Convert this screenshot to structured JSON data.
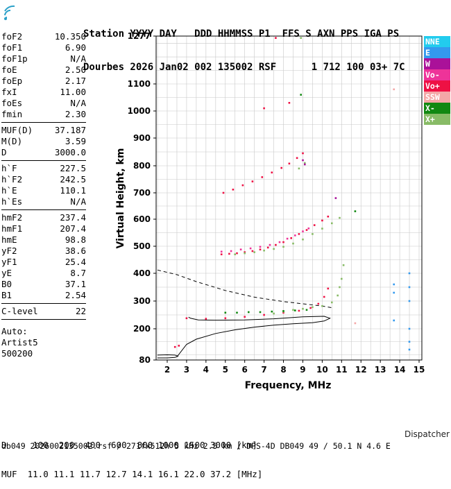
{
  "header": {
    "line1": "Station YYYY DAY   DDD HHMMSS P1  FFS S AXN PPS IGA PS",
    "line2": "Dourbes 2026 Jan02 002 135002 RSF      1 712 100 03+ 7C"
  },
  "params": [
    {
      "label": "foF2",
      "value": "10.350"
    },
    {
      "label": "foF1",
      "value": "6.90"
    },
    {
      "label": "foF1p",
      "value": "N/A"
    },
    {
      "label": "foE",
      "value": "2.50"
    },
    {
      "label": "foEp",
      "value": "2.17"
    },
    {
      "label": "fxI",
      "value": "11.00"
    },
    {
      "label": "foEs",
      "value": "N/A"
    },
    {
      "label": "fmin",
      "value": "2.30"
    },
    {
      "sep": true
    },
    {
      "label": "MUF(D)",
      "value": "37.187"
    },
    {
      "label": "M(D)",
      "value": "3.59"
    },
    {
      "label": "D",
      "value": "3000.0"
    },
    {
      "sep": true
    },
    {
      "label": "h`F",
      "value": "227.5"
    },
    {
      "label": "h`F2",
      "value": "242.5"
    },
    {
      "label": "h`E",
      "value": "110.1"
    },
    {
      "label": "h`Es",
      "value": "N/A"
    },
    {
      "sep": true
    },
    {
      "label": "hmF2",
      "value": "237.4"
    },
    {
      "label": "hmF1",
      "value": "207.4"
    },
    {
      "label": "hmE",
      "value": "98.8"
    },
    {
      "label": "yF2",
      "value": "38.6"
    },
    {
      "label": "yF1",
      "value": "25.4"
    },
    {
      "label": "yE",
      "value": "8.7"
    },
    {
      "label": "B0",
      "value": "37.1"
    },
    {
      "label": "B1",
      "value": "2.54"
    },
    {
      "sep": true
    },
    {
      "label": "C-level",
      "value": "22"
    },
    {
      "sep": true
    }
  ],
  "auto": {
    "line1": "Auto:",
    "line2": "Artist5",
    "line3": "500200"
  },
  "legend": [
    {
      "label": "NNE",
      "color": "#22ccee"
    },
    {
      "label": "E",
      "color": "#3399ee"
    },
    {
      "label": "W",
      "color": "#aa1199"
    },
    {
      "label": "Vo-",
      "color": "#ee3399"
    },
    {
      "label": "Vo+",
      "color": "#ee1144"
    },
    {
      "label": "SSW",
      "color": "#f4a7a7"
    },
    {
      "label": "X-",
      "color": "#118811"
    },
    {
      "label": "X+",
      "color": "#88bb66"
    }
  ],
  "muf_table": {
    "row1": "D     100  200  400  600  800 1000 1500 3000 [km]",
    "row2": "MUF  11.0 11.1 11.7 12.7 14.1 16.1 22.0 37.2 [MHz]"
  },
  "footer": "db049 2026002135002.rsf / 271fx512h 5 kHz 2.5 km / DPS-4D DB049 49 / 50.1 N 4.6 E",
  "dispatcher": "Dispatcher",
  "chart_data": {
    "type": "scatter",
    "xlabel": "Frequency, MHz",
    "ylabel": "Virtual Height, km",
    "xlim": [
      1.5,
      15.2
    ],
    "ylim": [
      80,
      1277
    ],
    "x_ticks": [
      2,
      3,
      4,
      5,
      6,
      7,
      8,
      9,
      10,
      11,
      12,
      13,
      14,
      15
    ],
    "y_ticks": [
      80,
      200,
      300,
      400,
      500,
      600,
      700,
      800,
      900,
      1000,
      1100,
      1277
    ],
    "grid": true,
    "series": [
      {
        "name": "Vo+",
        "color": "#ee1144",
        "points": [
          [
            4.8,
            470
          ],
          [
            5.2,
            472
          ],
          [
            5.6,
            474
          ],
          [
            6.0,
            478
          ],
          [
            6.4,
            482
          ],
          [
            6.8,
            488
          ],
          [
            7.2,
            495
          ],
          [
            7.6,
            505
          ],
          [
            8.0,
            515
          ],
          [
            8.4,
            530
          ],
          [
            8.8,
            545
          ],
          [
            9.2,
            560
          ],
          [
            9.6,
            578
          ],
          [
            10.0,
            595
          ],
          [
            10.3,
            610
          ],
          [
            4.9,
            700
          ],
          [
            5.4,
            712
          ],
          [
            5.9,
            728
          ],
          [
            6.4,
            742
          ],
          [
            6.9,
            758
          ],
          [
            7.4,
            775
          ],
          [
            7.9,
            792
          ],
          [
            8.3,
            808
          ],
          [
            8.7,
            828
          ],
          [
            9.0,
            845
          ],
          [
            3.0,
            238
          ],
          [
            4.0,
            236
          ],
          [
            5.0,
            238
          ],
          [
            6.0,
            243
          ],
          [
            7.0,
            250
          ],
          [
            8.0,
            258
          ],
          [
            8.8,
            265
          ],
          [
            9.4,
            275
          ],
          [
            9.8,
            290
          ],
          [
            10.1,
            315
          ],
          [
            10.3,
            345
          ],
          [
            2.4,
            130
          ],
          [
            2.6,
            135
          ],
          [
            7.6,
            1270
          ],
          [
            8.3,
            1030
          ],
          [
            7.0,
            1010
          ]
        ]
      },
      {
        "name": "Vo-",
        "color": "#ee3399",
        "points": [
          [
            4.8,
            480
          ],
          [
            5.3,
            482
          ],
          [
            5.8,
            488
          ],
          [
            6.3,
            492
          ],
          [
            6.8,
            498
          ],
          [
            7.3,
            505
          ],
          [
            7.8,
            515
          ],
          [
            8.2,
            528
          ],
          [
            8.6,
            540
          ],
          [
            9.0,
            555
          ],
          [
            9.3,
            566
          ]
        ]
      },
      {
        "name": "X+",
        "color": "#88bb66",
        "points": [
          [
            5.5,
            470
          ],
          [
            6.0,
            474
          ],
          [
            6.5,
            478
          ],
          [
            7.0,
            484
          ],
          [
            7.5,
            490
          ],
          [
            8.0,
            498
          ],
          [
            8.5,
            510
          ],
          [
            9.0,
            525
          ],
          [
            9.5,
            545
          ],
          [
            10.0,
            565
          ],
          [
            10.5,
            585
          ],
          [
            10.9,
            605
          ],
          [
            7.5,
            255
          ],
          [
            8.0,
            262
          ],
          [
            8.5,
            268
          ],
          [
            9.0,
            272
          ],
          [
            9.5,
            278
          ],
          [
            10.0,
            282
          ],
          [
            10.5,
            295
          ],
          [
            10.8,
            320
          ],
          [
            10.9,
            350
          ],
          [
            11.0,
            380
          ],
          [
            8.8,
            790
          ],
          [
            9.1,
            810
          ],
          [
            11.1,
            430
          ],
          [
            8.9,
            1270
          ]
        ]
      },
      {
        "name": "X-",
        "color": "#118811",
        "points": [
          [
            5.0,
            258
          ],
          [
            5.6,
            258
          ],
          [
            6.2,
            260
          ],
          [
            6.8,
            260
          ],
          [
            7.4,
            262
          ],
          [
            8.0,
            264
          ],
          [
            8.6,
            266
          ],
          [
            9.2,
            268
          ],
          [
            8.9,
            1060
          ],
          [
            11.7,
            630
          ]
        ]
      },
      {
        "name": "W",
        "color": "#aa1199",
        "points": [
          [
            9.0,
            820
          ],
          [
            9.1,
            805
          ],
          [
            10.7,
            680
          ]
        ]
      },
      {
        "name": "E",
        "color": "#3399ee",
        "points": [
          [
            13.7,
            360
          ],
          [
            13.7,
            330
          ],
          [
            13.7,
            230
          ],
          [
            14.5,
            400
          ],
          [
            14.5,
            350
          ],
          [
            14.5,
            300
          ],
          [
            14.5,
            200
          ],
          [
            14.5,
            150
          ],
          [
            14.5,
            120
          ]
        ]
      },
      {
        "name": "SSW",
        "color": "#f4a7a7",
        "points": [
          [
            13.7,
            1080
          ],
          [
            11.7,
            220
          ]
        ]
      }
    ]
  }
}
